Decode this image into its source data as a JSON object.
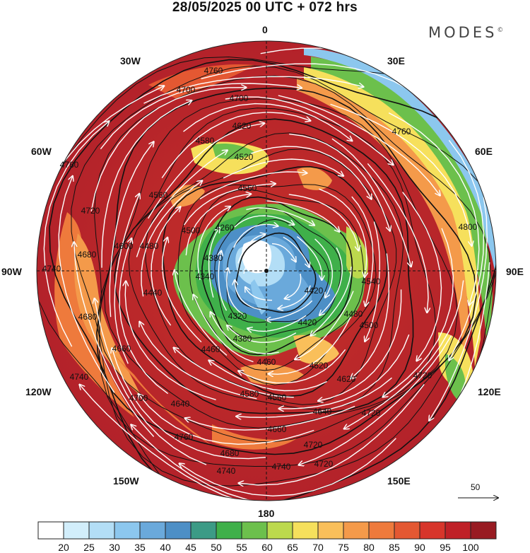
{
  "title": "28/05/2025  00 UTC  + 072 hrs",
  "brand": "MODES",
  "brand_mark": "©",
  "longitude_labels": [
    "0",
    "30E",
    "60E",
    "90E",
    "120E",
    "150E",
    "180",
    "150W",
    "120W",
    "90W",
    "60W",
    "30W"
  ],
  "reference_vector_label": "50",
  "colorbar": {
    "colors": [
      "#ffffff",
      "#d2eefb",
      "#b3def6",
      "#8cc7ee",
      "#6aa9db",
      "#4d8fc6",
      "#3c9b86",
      "#3fb04a",
      "#6cc04c",
      "#bcd94d",
      "#f6e05c",
      "#f9bf5a",
      "#f49a4a",
      "#ee7a3c",
      "#e45832",
      "#d7352b",
      "#bf2027",
      "#981b22"
    ],
    "tick_labels": [
      "20",
      "25",
      "30",
      "35",
      "40",
      "45",
      "50",
      "55",
      "60",
      "65",
      "70",
      "75",
      "80",
      "85",
      "90",
      "95",
      "100"
    ]
  },
  "contour_labels": [
    "4760",
    "4700",
    "4700",
    "4620",
    "4520",
    "4580",
    "4560",
    "4560",
    "4760",
    "4720",
    "4600",
    "4480",
    "4500",
    "4260",
    "4380",
    "4340",
    "4440",
    "4320",
    "4380",
    "4420",
    "4420",
    "4480",
    "4460",
    "4460",
    "4520",
    "4500",
    "4540",
    "4680",
    "4740",
    "4680",
    "4660",
    "4740",
    "4700",
    "4640",
    "4580",
    "4560",
    "4620",
    "4640",
    "4660",
    "4720",
    "4760",
    "4720",
    "4680",
    "4720",
    "4740",
    "4740",
    "4720",
    "4800",
    "4760"
  ]
}
